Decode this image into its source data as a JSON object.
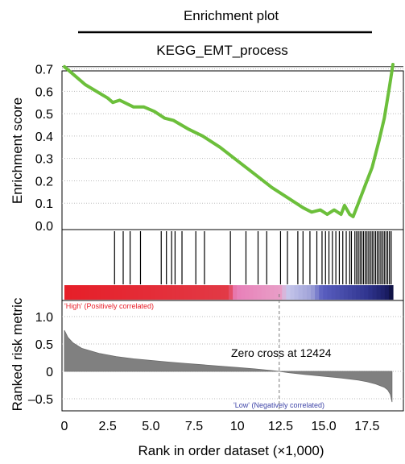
{
  "header": {
    "title": "Enrichment plot",
    "subtitle": "KEGG_EMT_process"
  },
  "colors": {
    "es_line": "#6cbf3b",
    "high": "#e8202a",
    "pink": "#e87fb8",
    "lavender": "#b9b9e4",
    "blue": "#3f45a8",
    "navy": "#1b1e66",
    "metric_fill": "#808080"
  },
  "chart_data": [
    {
      "type": "line",
      "title": "KEGG_EMT_process",
      "ylabel": "Enrichment score",
      "ylim": [
        0,
        0.72
      ],
      "yticks": [
        "0.0",
        "0.1",
        "0.2",
        "0.3",
        "0.4",
        "0.5",
        "0.6",
        "0.7"
      ],
      "grid": true,
      "series": [
        {
          "x": [
            0,
            1.2,
            2.5,
            2.8,
            3.2,
            4.0,
            4.6,
            5.2,
            5.8,
            6.3,
            7.2,
            8.0,
            9.0,
            10.0,
            11.0,
            12.0,
            13.0,
            13.8,
            14.3,
            14.8,
            15.2,
            15.6,
            16.0,
            16.2,
            16.5,
            16.7,
            17.0,
            17.4,
            17.8,
            18.2,
            18.5,
            18.8,
            19.0
          ],
          "y": [
            0.71,
            0.63,
            0.57,
            0.55,
            0.56,
            0.53,
            0.53,
            0.51,
            0.48,
            0.47,
            0.43,
            0.4,
            0.35,
            0.29,
            0.23,
            0.17,
            0.12,
            0.08,
            0.06,
            0.07,
            0.05,
            0.07,
            0.05,
            0.09,
            0.05,
            0.04,
            0.1,
            0.18,
            0.26,
            0.38,
            0.48,
            0.62,
            0.72
          ]
        }
      ]
    },
    {
      "type": "hits",
      "hit_positions": [
        2.9,
        3.4,
        3.8,
        4.4,
        5.6,
        5.9,
        6.2,
        6.4,
        6.8,
        7.6,
        8.1,
        9.6,
        10.5,
        11.2,
        11.7,
        12.5,
        12.9,
        13.5,
        13.8,
        14.2,
        14.6,
        14.9,
        15.1,
        15.3,
        15.5,
        15.7,
        15.9,
        16.1,
        16.3,
        16.5,
        16.6,
        16.8,
        16.9,
        17.0,
        17.1,
        17.2,
        17.3,
        17.4,
        17.5,
        17.6,
        17.7,
        17.8,
        17.9,
        18.0,
        18.1,
        18.2,
        18.3,
        18.4,
        18.5,
        18.6,
        18.7,
        18.8,
        18.9
      ]
    },
    {
      "type": "area",
      "ylabel": "Ranked risk metric",
      "xlabel": "Rank in order dataset (×1,000)",
      "xlim": [
        0,
        19
      ],
      "ylim": [
        -0.6,
        1.0
      ],
      "xticks": [
        "0",
        "2.5",
        "5.0",
        "7.5",
        "10",
        "12.5",
        "15.0",
        "17.5"
      ],
      "yticks": [
        "1.0",
        "0.5",
        "0",
        "–0.5"
      ],
      "zero_cross": 12424,
      "zero_cross_label": "Zero cross at 12424",
      "high_label": "'High' (Positively correlated)",
      "low_label": "'Low' (Negatively correlated)",
      "series": [
        {
          "x": [
            0,
            0.2,
            0.5,
            1.0,
            2.0,
            3.0,
            4.0,
            5.0,
            6.0,
            7.0,
            8.0,
            9.0,
            10.0,
            11.0,
            12.0,
            12.42,
            13.0,
            14.0,
            15.0,
            16.0,
            17.0,
            17.5,
            18.0,
            18.5,
            18.7,
            18.85,
            18.95
          ],
          "y": [
            0.75,
            0.62,
            0.52,
            0.42,
            0.33,
            0.27,
            0.23,
            0.2,
            0.17,
            0.145,
            0.12,
            0.095,
            0.07,
            0.045,
            0.015,
            0.0,
            -0.025,
            -0.06,
            -0.09,
            -0.12,
            -0.16,
            -0.19,
            -0.23,
            -0.29,
            -0.34,
            -0.42,
            -0.56
          ]
        }
      ]
    }
  ]
}
